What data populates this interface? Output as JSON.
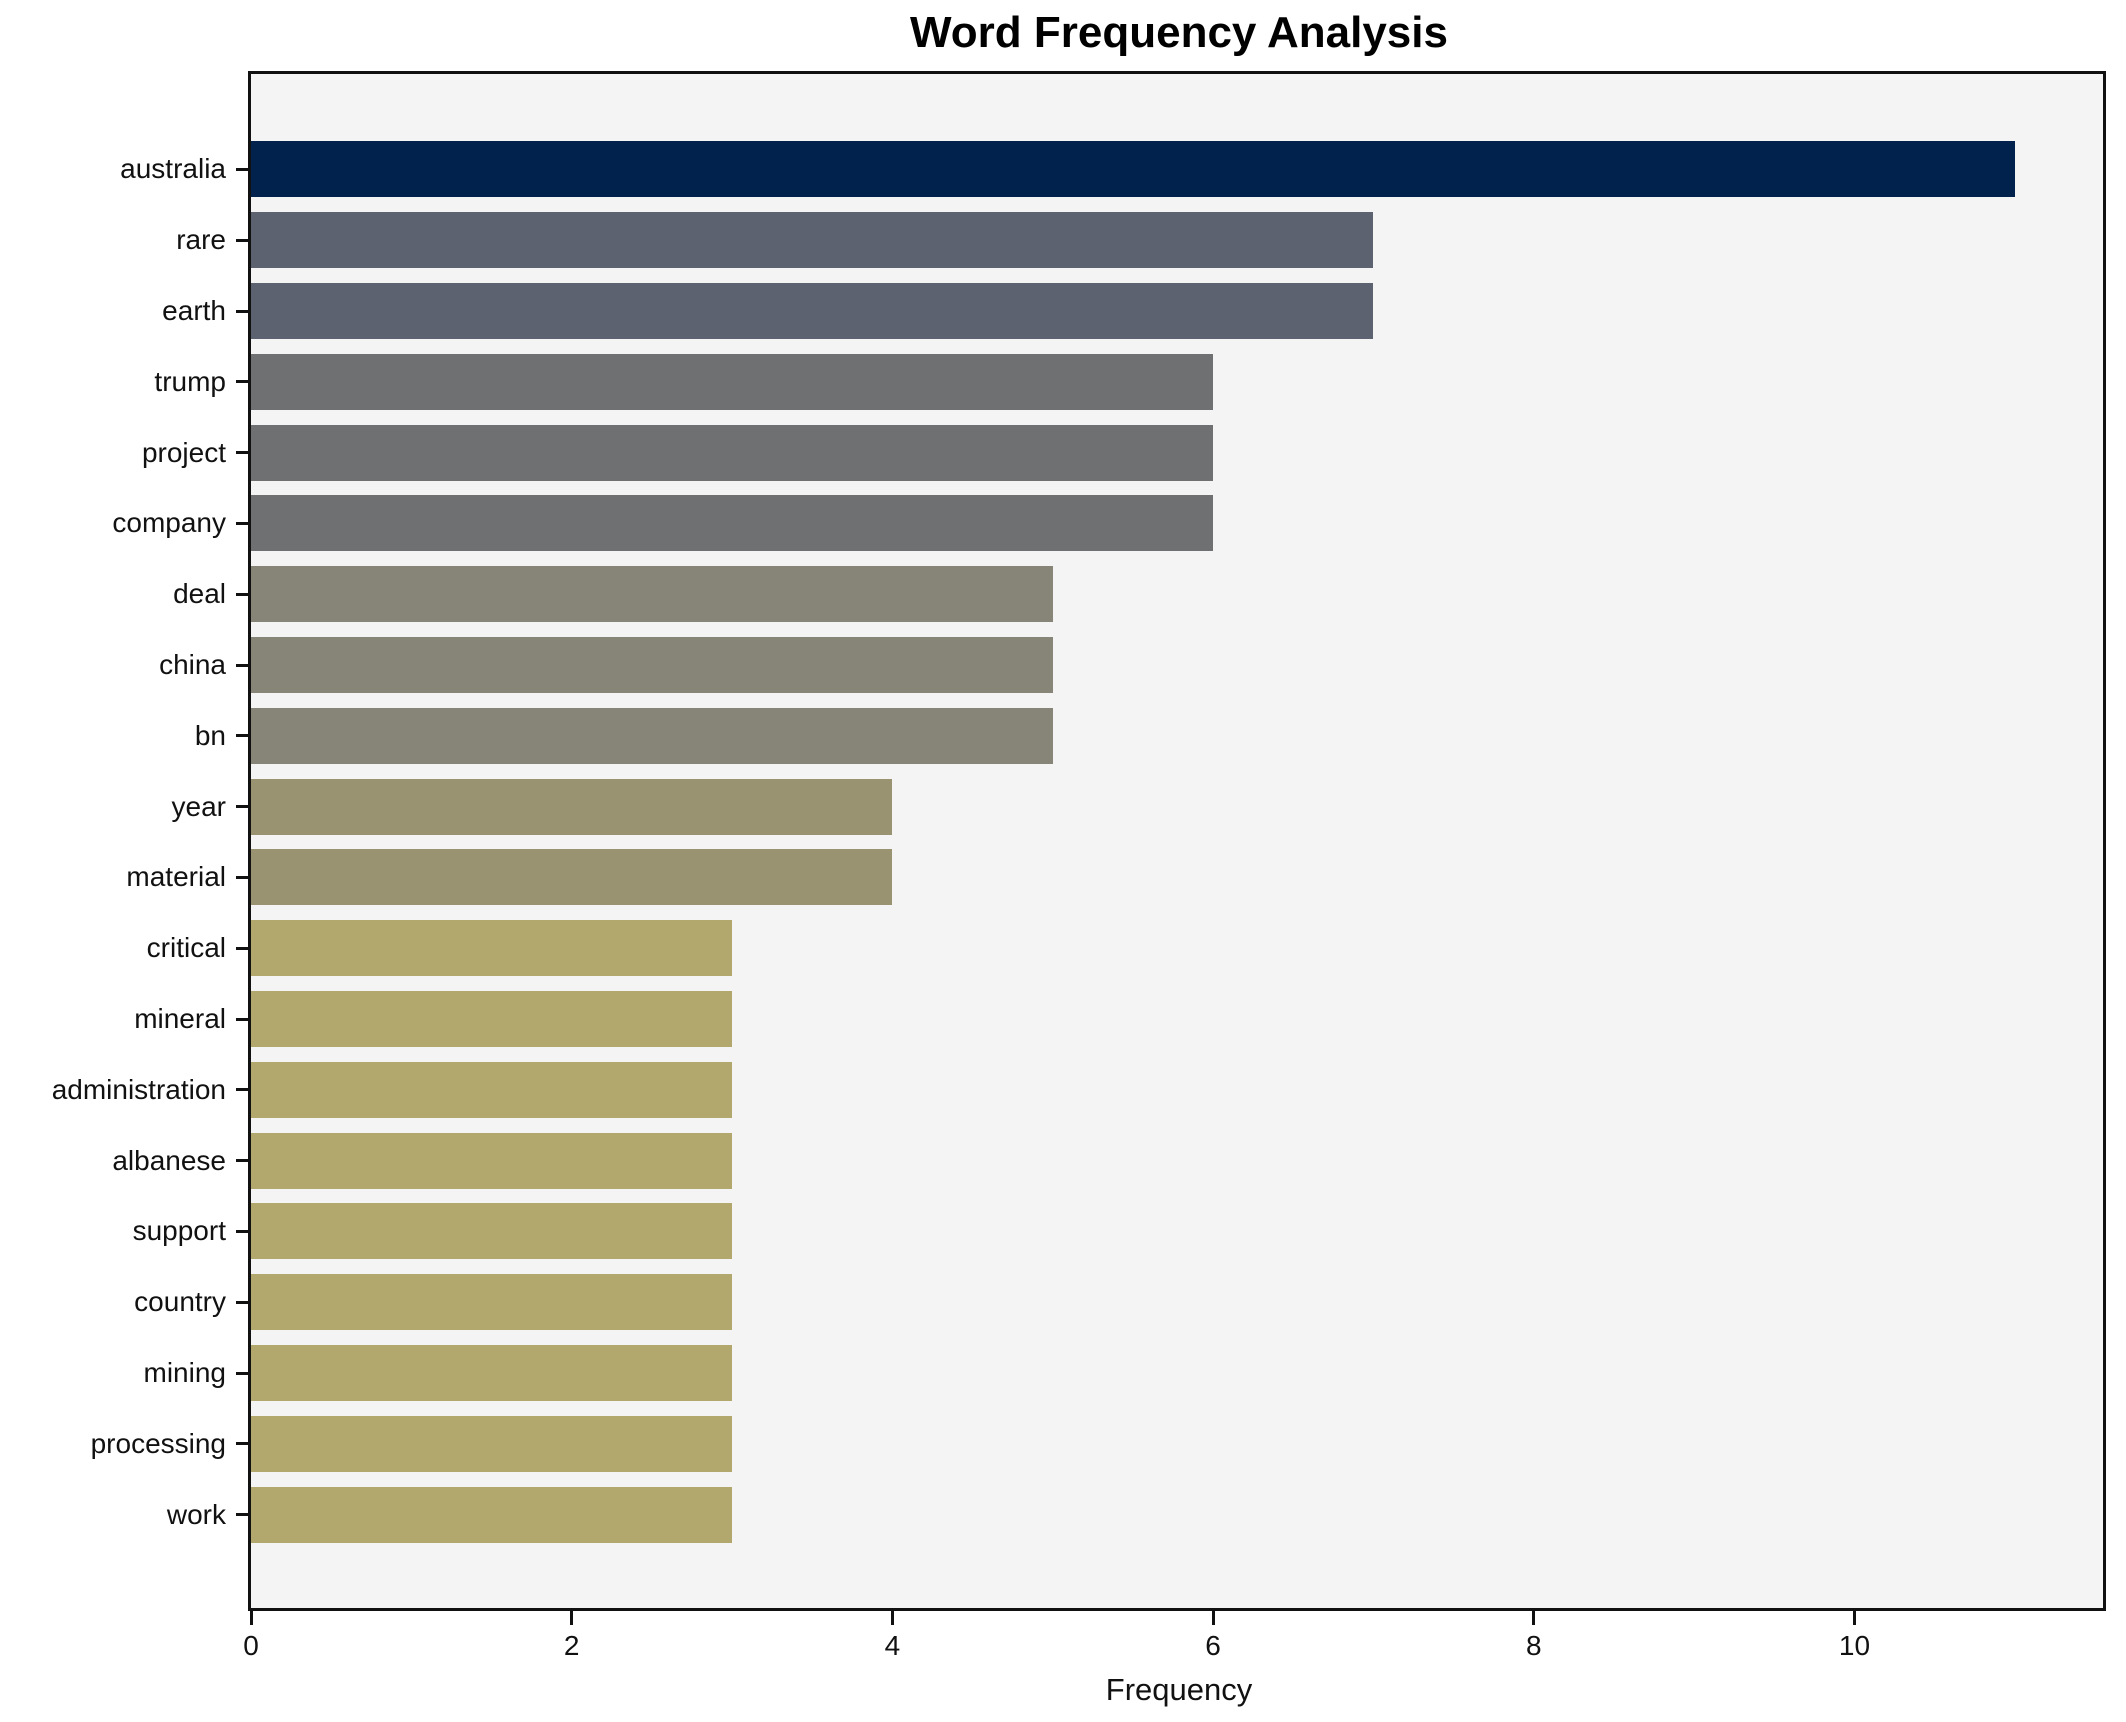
{
  "title": "Word Frequency Analysis",
  "chart_data": {
    "type": "bar",
    "orientation": "horizontal",
    "title": "Word Frequency Analysis",
    "xlabel": "Frequency",
    "categories": [
      "australia",
      "rare",
      "earth",
      "trump",
      "project",
      "company",
      "deal",
      "china",
      "bn",
      "year",
      "material",
      "critical",
      "mineral",
      "administration",
      "albanese",
      "support",
      "country",
      "mining",
      "processing",
      "work"
    ],
    "values": [
      11,
      7,
      7,
      6,
      6,
      6,
      5,
      5,
      5,
      4,
      4,
      3,
      3,
      3,
      3,
      3,
      3,
      3,
      3,
      3
    ],
    "bar_colors": [
      "#01224d",
      "#5c6270",
      "#5c6270",
      "#6f7072",
      "#6f7072",
      "#6f7072",
      "#878578",
      "#878578",
      "#878578",
      "#9a9371",
      "#9a9371",
      "#b2a76c",
      "#b2a76c",
      "#b2a76c",
      "#b2a76c",
      "#b2a76c",
      "#b2a76c",
      "#b2a76c",
      "#b2a76c",
      "#b2a76c"
    ],
    "xticks": [
      0,
      2,
      4,
      6,
      8,
      10
    ],
    "xlim": [
      0,
      11.55
    ],
    "grid": false,
    "legend_position": "none",
    "plot_background": "#f5f4f4",
    "figure_background": "#ffffff",
    "spine_color": "#111111"
  }
}
